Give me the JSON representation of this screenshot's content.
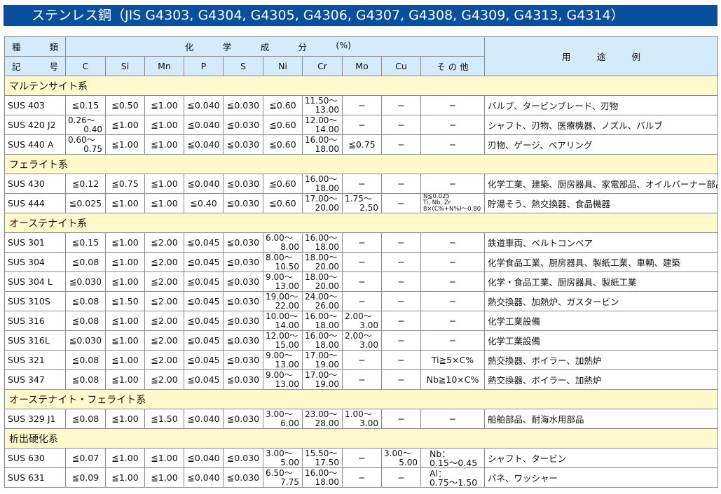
{
  "title": "ステンレス鋼（JIS G4303, G4304, G4305, G4306, G4307, G4308, G4309, G4313, G4314）",
  "header": {
    "kind_label": [
      "種",
      "類"
    ],
    "symbol_label": [
      "記",
      "号"
    ],
    "chem_label": [
      "化",
      "学",
      "成",
      "分",
      "(%)"
    ],
    "columns": [
      "C",
      "Si",
      "Mn",
      "P",
      "S",
      "Ni",
      "Cr",
      "Mo",
      "Cu",
      "そ の 他"
    ],
    "use_label": [
      "用",
      "途",
      "例"
    ]
  },
  "sections": [
    {
      "name": "マルテンサイト系",
      "rows": [
        {
          "name": "SUS 403",
          "cells": [
            "≦0.15",
            "≦0.50",
            "≦1.00",
            "≦0.040",
            "≦0.030",
            "≦0.60",
            [
              "11.50〜",
              "13.00"
            ],
            "−",
            "−",
            "−"
          ],
          "use": "バルブ、タービンブレード、刃物"
        },
        {
          "name": "SUS 420 J2",
          "cells": [
            [
              "0.26〜",
              "0.40"
            ],
            "≦1.00",
            "≦1.00",
            "≦0.040",
            "≦0.030",
            "≦0.60",
            [
              "12.00〜",
              "14.00"
            ],
            "−",
            "−",
            "−"
          ],
          "use": "シャフト、刃物、医療機器、ノズル、バルブ"
        },
        {
          "name": "SUS 440 A",
          "cells": [
            [
              "0.60〜",
              "0.75"
            ],
            "≦1.00",
            "≦1.00",
            "≦0.040",
            "≦0.030",
            "≦0.60",
            [
              "16.00〜",
              "18.00"
            ],
            "≦0.75",
            "−",
            "−"
          ],
          "use": "刃物、ゲージ、ベアリング"
        }
      ]
    },
    {
      "name": "フェライト系",
      "rows": [
        {
          "name": "SUS 430",
          "cells": [
            "≦0.12",
            "≦0.75",
            "≦1.00",
            "≦0.040",
            "≦0.030",
            "≦0.60",
            [
              "16.00〜",
              "18.00"
            ],
            "−",
            "−",
            "−"
          ],
          "use": "化学工業、建築、厨房器具、家電部品、オイルバーナー部品"
        },
        {
          "name": "SUS 444",
          "cells": [
            "≦0.025",
            "≦1.00",
            "≦1.00",
            "≦0.40",
            "≦0.030",
            "≦0.60",
            [
              "17.00〜",
              "20.00"
            ],
            [
              "1.75〜",
              "2.50"
            ],
            "−",
            {
              "small": [
                "N≦0.025",
                "Ti, Nb, Zr",
                "8×(C%+N%)〜0.80"
              ]
            }
          ],
          "use": "貯湯そう、熱交換器、食品機器"
        }
      ]
    },
    {
      "name": "オーステナイト系",
      "rows": [
        {
          "name": "SUS 301",
          "cells": [
            "≦0.15",
            "≦1.00",
            "≦2.00",
            "≦0.045",
            "≦0.030",
            [
              "6.00〜",
              "8.00"
            ],
            [
              "16.00〜",
              "18.00"
            ],
            "−",
            "−",
            "−"
          ],
          "use": "鉄道車両、ベルトコンベア"
        },
        {
          "name": "SUS 304",
          "cells": [
            "≦0.08",
            "≦1.00",
            "≦2.00",
            "≦0.045",
            "≦0.030",
            [
              "8.00〜",
              "10.50"
            ],
            [
              "18.00〜",
              "20.00"
            ],
            "−",
            "−",
            "−"
          ],
          "use": "化学食品工業、厨房器具、製紙工業、車輌、建築"
        },
        {
          "name": "SUS 304 L",
          "cells": [
            "≦0.030",
            "≦1.00",
            "≦2.00",
            "≦0.045",
            "≦0.030",
            [
              "9.00〜",
              "13.00"
            ],
            [
              "18.00〜",
              "20.00"
            ],
            "−",
            "−",
            "−"
          ],
          "use": "化学・食品工業、厨房器具、製紙工業"
        },
        {
          "name": "SUS 310S",
          "cells": [
            "≦0.08",
            "≦1.50",
            "≦2.00",
            "≦0.045",
            "≦0.030",
            [
              "19.00〜",
              "22.00"
            ],
            [
              "24.00〜",
              "26.00"
            ],
            "−",
            "−",
            "−"
          ],
          "use": "熱交換器、加熱炉、ガスタービン"
        },
        {
          "name": "SUS 316",
          "cells": [
            "≦0.08",
            "≦1.00",
            "≦2.00",
            "≦0.045",
            "≦0.030",
            [
              "10.00〜",
              "14.00"
            ],
            [
              "16.00〜",
              "18.00"
            ],
            [
              "2.00〜",
              "3.00"
            ],
            "−",
            "−"
          ],
          "use": "化学工業設備"
        },
        {
          "name": "SUS 316L",
          "cells": [
            "≦0.030",
            "≦1.00",
            "≦2.00",
            "≦0.045",
            "≦0.030",
            [
              "12.00〜",
              "15.00"
            ],
            [
              "16.00〜",
              "18.00"
            ],
            [
              "2.00〜",
              "3.00"
            ],
            "−",
            "−"
          ],
          "use": "化学工業設備"
        },
        {
          "name": "SUS 321",
          "cells": [
            "≦0.08",
            "≦1.00",
            "≦2.00",
            "≦0.045",
            "≦0.030",
            [
              "9.00〜",
              "13.00"
            ],
            [
              "17.00〜",
              "19.00"
            ],
            "−",
            "−",
            "Ti≧5×C%"
          ],
          "use": "熱交換器、ボイラー、加熱炉"
        },
        {
          "name": "SUS 347",
          "cells": [
            "≦0.08",
            "≦1.00",
            "≦2.00",
            "≦0.045",
            "≦0.030",
            [
              "9.00〜",
              "13.00"
            ],
            [
              "17.00〜",
              "19.00"
            ],
            "−",
            "−",
            "Nb≧10×C%"
          ],
          "use": "熱交換器、ボイラー、加熱炉"
        }
      ]
    },
    {
      "name": "オーステナイト・フェライト系",
      "rows": [
        {
          "name": "SUS 329 J1",
          "cells": [
            "≦0.08",
            "≦1.00",
            "≦1.50",
            "≦0.040",
            "≦0.030",
            [
              "3.00〜",
              "6.00"
            ],
            [
              "23.00〜",
              "28.00"
            ],
            [
              "1.00〜",
              "3.00"
            ],
            "−",
            "−"
          ],
          "use": "船舶部品、耐海水用部品"
        }
      ]
    },
    {
      "name": "析出硬化系",
      "rows": [
        {
          "name": "SUS 630",
          "cells": [
            "≦0.07",
            "≦1.00",
            "≦1.00",
            "≦0.040",
            "≦0.030",
            [
              "3.00〜",
              "5.00"
            ],
            [
              "15.50〜",
              "17.50"
            ],
            "−",
            [
              "3.00〜",
              "5.00"
            ],
            {
              "two": [
                "Nb：",
                "0.15〜0.45"
              ]
            }
          ],
          "use": "シャフト、タービン"
        },
        {
          "name": "SUS 631",
          "cells": [
            "≦0.09",
            "≦1.00",
            "≦1.00",
            "≦0.040",
            "≦0.030",
            [
              "6.50〜",
              "7.75"
            ],
            [
              "16.00〜",
              "18.00"
            ],
            "−",
            "−",
            {
              "two": [
                "Al：",
                "0.75〜1.50"
              ]
            }
          ],
          "use": "バネ、ワッシャー"
        }
      ]
    }
  ],
  "colors": {
    "title_bg": "#0a4f9e",
    "header_bg": "#d3ebfa",
    "section_bg": "#fff9cc"
  }
}
